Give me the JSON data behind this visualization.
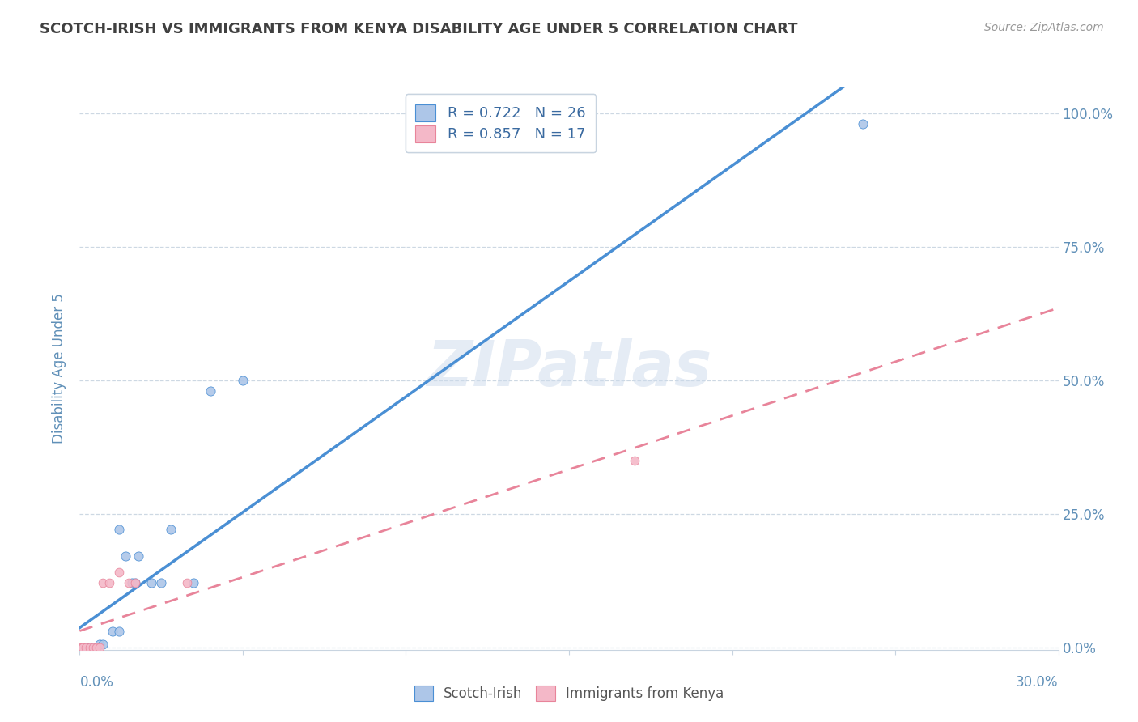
{
  "title": "SCOTCH-IRISH VS IMMIGRANTS FROM KENYA DISABILITY AGE UNDER 5 CORRELATION CHART",
  "source": "Source: ZipAtlas.com",
  "ylabel": "Disability Age Under 5",
  "xlim": [
    0.0,
    0.3
  ],
  "ylim": [
    -0.005,
    1.05
  ],
  "yticks": [
    0.0,
    0.25,
    0.5,
    0.75,
    1.0
  ],
  "ytick_labels": [
    "0.0%",
    "25.0%",
    "50.0%",
    "75.0%",
    "100.0%"
  ],
  "legend_r1": "R = 0.722",
  "legend_n1": "N = 26",
  "legend_r2": "R = 0.857",
  "legend_n2": "N = 17",
  "color_scotch": "#adc6e8",
  "color_kenya": "#f4b8c8",
  "line_color_scotch": "#4a8fd4",
  "line_color_kenya": "#e8849a",
  "watermark_color": "#ccdaec",
  "scotch_x": [
    0.0,
    0.0,
    0.0,
    0.001,
    0.001,
    0.002,
    0.002,
    0.003,
    0.004,
    0.005,
    0.006,
    0.007,
    0.01,
    0.012,
    0.012,
    0.014,
    0.016,
    0.017,
    0.018,
    0.022,
    0.025,
    0.028,
    0.035,
    0.04,
    0.05,
    0.24
  ],
  "scotch_y": [
    0.0,
    0.0,
    0.0,
    0.0,
    0.0,
    0.0,
    0.0,
    0.0,
    0.0,
    0.0,
    0.005,
    0.005,
    0.03,
    0.03,
    0.22,
    0.17,
    0.12,
    0.12,
    0.17,
    0.12,
    0.12,
    0.22,
    0.12,
    0.48,
    0.5,
    0.98
  ],
  "kenya_x": [
    0.0,
    0.0,
    0.0,
    0.001,
    0.001,
    0.002,
    0.003,
    0.004,
    0.005,
    0.006,
    0.007,
    0.009,
    0.012,
    0.015,
    0.017,
    0.033,
    0.17
  ],
  "kenya_y": [
    0.0,
    0.0,
    0.0,
    0.0,
    0.0,
    0.0,
    0.0,
    0.0,
    0.0,
    0.0,
    0.12,
    0.12,
    0.14,
    0.12,
    0.12,
    0.12,
    0.35
  ],
  "background_color": "#ffffff",
  "grid_color": "#c8d4e0",
  "title_color": "#404040",
  "title_fontsize": 13,
  "axis_label_color": "#6090b8",
  "legend_text_color": "#3a6aa0"
}
